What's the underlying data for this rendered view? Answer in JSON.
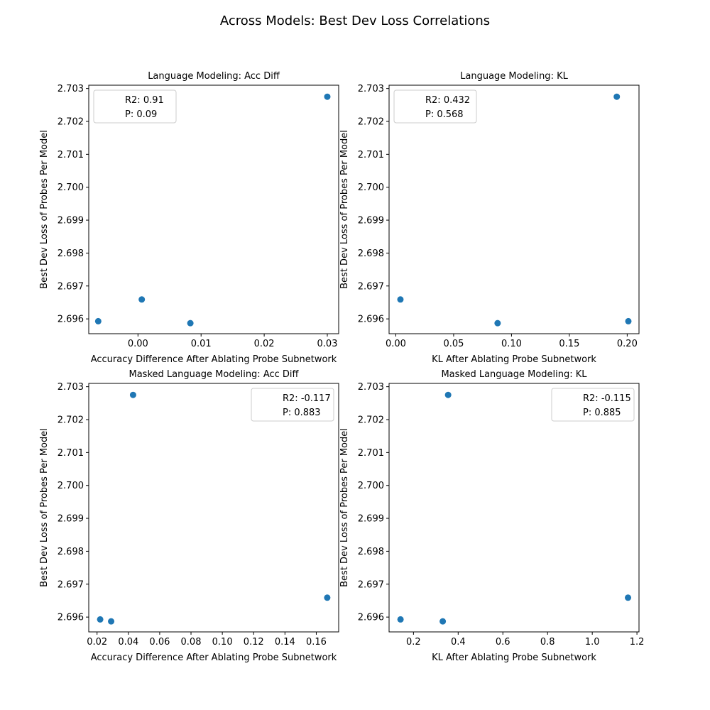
{
  "figure": {
    "suptitle": "Across Models: Best Dev Loss Correlations"
  },
  "chart_data": [
    {
      "type": "scatter",
      "title": "Language Modeling: Acc Diff",
      "xlabel": "Accuracy Difference After Ablating Probe Subnetwork",
      "ylabel": "Best Dev Loss of Probes Per Model",
      "xlim": [
        -0.0078,
        0.0318
      ],
      "ylim": [
        2.69555,
        2.7031
      ],
      "xticks": [
        "0.00",
        "0.01",
        "0.02",
        "0.03"
      ],
      "xtick_values": [
        0.0,
        0.01,
        0.02,
        0.03
      ],
      "yticks": [
        "2.696",
        "2.697",
        "2.698",
        "2.699",
        "2.700",
        "2.701",
        "2.702",
        "2.703"
      ],
      "ytick_values": [
        2.696,
        2.697,
        2.698,
        2.699,
        2.7,
        2.701,
        2.702,
        2.703
      ],
      "legend": {
        "position": "upper-left",
        "entries": [
          "R2: 0.91",
          "P: 0.09"
        ]
      },
      "grid": false,
      "color": "#1f77b4",
      "points": [
        {
          "x": -0.0063,
          "y": 2.69593
        },
        {
          "x": 0.0006,
          "y": 2.69659
        },
        {
          "x": 0.0083,
          "y": 2.69587
        },
        {
          "x": 0.03,
          "y": 2.70275
        }
      ]
    },
    {
      "type": "scatter",
      "title": "Language Modeling: KL",
      "xlabel": "KL After Ablating Probe Subnetwork",
      "ylabel": "Best Dev Loss of Probes Per Model",
      "xlim": [
        -0.0058,
        0.2102
      ],
      "ylim": [
        2.69555,
        2.7031
      ],
      "xticks": [
        "0.00",
        "0.05",
        "0.10",
        "0.15",
        "0.20"
      ],
      "xtick_values": [
        0.0,
        0.05,
        0.1,
        0.15,
        0.2
      ],
      "yticks": [
        "2.696",
        "2.697",
        "2.698",
        "2.699",
        "2.700",
        "2.701",
        "2.702",
        "2.703"
      ],
      "ytick_values": [
        2.696,
        2.697,
        2.698,
        2.699,
        2.7,
        2.701,
        2.702,
        2.703
      ],
      "legend": {
        "position": "upper-left",
        "entries": [
          "R2: 0.432",
          "P: 0.568"
        ]
      },
      "grid": false,
      "color": "#1f77b4",
      "points": [
        {
          "x": 0.004,
          "y": 2.69659
        },
        {
          "x": 0.088,
          "y": 2.69587
        },
        {
          "x": 0.191,
          "y": 2.70275
        },
        {
          "x": 0.201,
          "y": 2.69593
        }
      ]
    },
    {
      "type": "scatter",
      "title": "Masked Language Modeling: Acc Diff",
      "xlabel": "Accuracy Difference After Ablating Probe Subnetwork",
      "ylabel": "Best Dev Loss of Probes Per Model",
      "xlim": [
        0.0147,
        0.1743
      ],
      "ylim": [
        2.69555,
        2.7031
      ],
      "xticks": [
        "0.02",
        "0.04",
        "0.06",
        "0.08",
        "0.10",
        "0.12",
        "0.14",
        "0.16"
      ],
      "xtick_values": [
        0.02,
        0.04,
        0.06,
        0.08,
        0.1,
        0.12,
        0.14,
        0.16
      ],
      "yticks": [
        "2.696",
        "2.697",
        "2.698",
        "2.699",
        "2.700",
        "2.701",
        "2.702",
        "2.703"
      ],
      "ytick_values": [
        2.696,
        2.697,
        2.698,
        2.699,
        2.7,
        2.701,
        2.702,
        2.703
      ],
      "legend": {
        "position": "upper-right",
        "entries": [
          "R2: -0.117",
          "P: 0.883"
        ]
      },
      "grid": false,
      "color": "#1f77b4",
      "points": [
        {
          "x": 0.022,
          "y": 2.69593
        },
        {
          "x": 0.029,
          "y": 2.69587
        },
        {
          "x": 0.043,
          "y": 2.70275
        },
        {
          "x": 0.167,
          "y": 2.69659
        }
      ]
    },
    {
      "type": "scatter",
      "title": "Masked Language Modeling: KL",
      "xlabel": "KL After Ablating Probe Subnetwork",
      "ylabel": "Best Dev Loss of Probes Per Model",
      "xlim": [
        0.0908,
        1.2092
      ],
      "ylim": [
        2.69555,
        2.7031
      ],
      "xticks": [
        "0.2",
        "0.4",
        "0.6",
        "0.8",
        "1.0",
        "1.2"
      ],
      "xtick_values": [
        0.2,
        0.4,
        0.6,
        0.8,
        1.0,
        1.2
      ],
      "yticks": [
        "2.696",
        "2.697",
        "2.698",
        "2.699",
        "2.700",
        "2.701",
        "2.702",
        "2.703"
      ],
      "ytick_values": [
        2.696,
        2.697,
        2.698,
        2.699,
        2.7,
        2.701,
        2.702,
        2.703
      ],
      "legend": {
        "position": "upper-right",
        "entries": [
          "R2: -0.115",
          "P: 0.885"
        ]
      },
      "grid": false,
      "color": "#1f77b4",
      "points": [
        {
          "x": 0.142,
          "y": 2.69593
        },
        {
          "x": 0.331,
          "y": 2.69587
        },
        {
          "x": 0.355,
          "y": 2.70275
        },
        {
          "x": 1.16,
          "y": 2.69659
        }
      ]
    }
  ]
}
